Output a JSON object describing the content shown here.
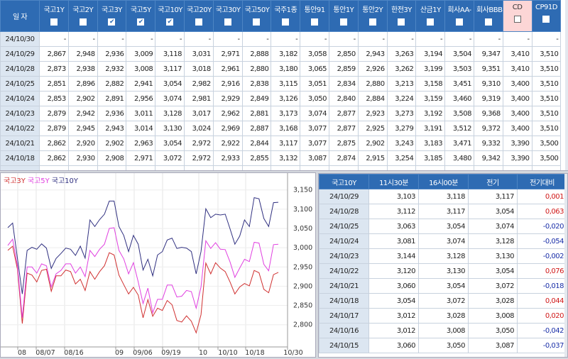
{
  "rates": {
    "date_header": "일 자",
    "columns": [
      {
        "label": "국고1Y",
        "checked": false
      },
      {
        "label": "국고2Y",
        "checked": false
      },
      {
        "label": "국고3Y",
        "checked": true
      },
      {
        "label": "국고5Y",
        "checked": true
      },
      {
        "label": "국고10Y",
        "checked": true
      },
      {
        "label": "국고20Y",
        "checked": false
      },
      {
        "label": "국고30Y",
        "checked": false
      },
      {
        "label": "국고50Y",
        "checked": false
      },
      {
        "label": "국주1종",
        "checked": false
      },
      {
        "label": "통안91",
        "checked": false
      },
      {
        "label": "통안1Y",
        "checked": false
      },
      {
        "label": "통안2Y",
        "checked": false
      },
      {
        "label": "한전3Y",
        "checked": false
      },
      {
        "label": "산금1Y",
        "checked": false
      },
      {
        "label": "회사AA-",
        "checked": false
      },
      {
        "label": "회사BBB-",
        "checked": false
      },
      {
        "label": "CD",
        "checked": false
      },
      {
        "label": "CP91D",
        "checked": false
      }
    ],
    "rows": [
      {
        "date": "24/10/30",
        "values": [
          "-",
          "-",
          "-",
          "-",
          "-",
          "-",
          "-",
          "-",
          "-",
          "-",
          "-",
          "-",
          "-",
          "-",
          "-",
          "-",
          "-",
          "-"
        ]
      },
      {
        "date": "24/10/29",
        "values": [
          "2,867",
          "2,948",
          "2,936",
          "3,009",
          "3,118",
          "3,031",
          "2,971",
          "2,888",
          "3,182",
          "3,058",
          "2,850",
          "2,943",
          "3,263",
          "3,194",
          "3,504",
          "9,347",
          "3,410",
          "3,510"
        ]
      },
      {
        "date": "24/10/28",
        "values": [
          "2,873",
          "2,938",
          "2,932",
          "3,008",
          "3,117",
          "3,018",
          "2,961",
          "2,880",
          "3,180",
          "3,065",
          "2,859",
          "2,926",
          "3,262",
          "3,199",
          "3,503",
          "9,351",
          "3,410",
          "3,510"
        ]
      },
      {
        "date": "24/10/25",
        "values": [
          "2,851",
          "2,896",
          "2,882",
          "2,941",
          "3,054",
          "2,982",
          "2,916",
          "2,838",
          "3,115",
          "3,051",
          "2,834",
          "2,880",
          "3,213",
          "3,158",
          "3,451",
          "9,310",
          "3,400",
          "3,510"
        ]
      },
      {
        "date": "24/10/24",
        "values": [
          "2,853",
          "2,902",
          "2,891",
          "2,956",
          "3,074",
          "2,981",
          "2,929",
          "2,849",
          "3,126",
          "3,050",
          "2,840",
          "2,884",
          "3,224",
          "3,159",
          "3,460",
          "9,319",
          "3,400",
          "3,510"
        ]
      },
      {
        "date": "24/10/23",
        "values": [
          "2,879",
          "2,942",
          "2,936",
          "3,011",
          "3,128",
          "3,017",
          "2,962",
          "2,881",
          "3,173",
          "3,074",
          "2,877",
          "2,923",
          "3,273",
          "3,192",
          "3,508",
          "9,368",
          "3,400",
          "3,510"
        ]
      },
      {
        "date": "24/10/22",
        "values": [
          "2,879",
          "2,945",
          "2,943",
          "3,014",
          "3,130",
          "3,024",
          "2,969",
          "2,887",
          "3,168",
          "3,077",
          "2,877",
          "2,925",
          "3,279",
          "3,191",
          "3,512",
          "9,372",
          "3,400",
          "3,510"
        ]
      },
      {
        "date": "24/10/21",
        "values": [
          "2,862",
          "2,920",
          "2,902",
          "2,963",
          "3,054",
          "2,972",
          "2,922",
          "2,844",
          "3,117",
          "3,077",
          "2,875",
          "2,902",
          "3,243",
          "3,183",
          "3,471",
          "9,332",
          "3,390",
          "3,500"
        ]
      },
      {
        "date": "24/10/18",
        "values": [
          "2,862",
          "2,930",
          "2,908",
          "2,971",
          "3,072",
          "2,972",
          "2,933",
          "2,855",
          "3,132",
          "3,087",
          "2,874",
          "2,915",
          "3,254",
          "3,185",
          "3,480",
          "9,342",
          "3,390",
          "3,500"
        ]
      }
    ]
  },
  "chart_data": {
    "type": "line",
    "legend": [
      "국고3Y",
      "국고5Y",
      "국고10Y"
    ],
    "colors": [
      "#d03030",
      "#e040e0",
      "#303080"
    ],
    "ylim": [
      2750,
      3190
    ],
    "yticks": [
      "3,150",
      "3,100",
      "3,050",
      "3,000",
      "2,950",
      "2,900",
      "2,850",
      "2,800"
    ],
    "ytick_values": [
      3150,
      3100,
      3050,
      3000,
      2950,
      2900,
      2850,
      2800
    ],
    "xticks": [
      "08",
      "08/07",
      "08/16",
      "09",
      "09/06",
      "09/19",
      "10",
      "10/10",
      "10/18",
      "10/30"
    ],
    "series": [
      {
        "name": "국고3Y",
        "values": [
          2993,
          3004,
          2944,
          2803,
          2934,
          2929,
          2911,
          2941,
          2944,
          2887,
          2927,
          2927,
          2942,
          2938,
          2906,
          2918,
          2889,
          2938,
          2918,
          2938,
          2953,
          2987,
          2981,
          2929,
          2904,
          2880,
          2897,
          2877,
          2818,
          2865,
          2822,
          2843,
          2837,
          2863,
          2852,
          2811,
          2807,
          2823,
          2809,
          2779,
          2826,
          2960,
          2932,
          2961,
          2947,
          2938,
          2911,
          2880,
          2898,
          2907,
          2901,
          2941,
          2935,
          2892,
          2883,
          2930,
          2936
        ]
      },
      {
        "name": "국고5Y",
        "values": [
          3006,
          3022,
          2953,
          2818,
          2950,
          2950,
          2934,
          2958,
          2953,
          2898,
          2932,
          2941,
          2958,
          2958,
          2934,
          2950,
          2925,
          2993,
          2977,
          2996,
          3009,
          3050,
          3052,
          2993,
          2971,
          2932,
          2961,
          2911,
          2855,
          2895,
          2831,
          2866,
          2866,
          2903,
          2903,
          2872,
          2874,
          2889,
          2886,
          2843,
          2898,
          3018,
          2998,
          3013,
          2996,
          2995,
          2963,
          2923,
          2947,
          2970,
          2964,
          3014,
          3012,
          2957,
          2940,
          3008,
          3009
        ]
      },
      {
        "name": "국고10Y",
        "values": [
          3052,
          3064,
          2972,
          2880,
          2993,
          3001,
          2996,
          3010,
          2999,
          2946,
          2972,
          2985,
          2999,
          2996,
          2980,
          3004,
          2973,
          3072,
          3055,
          3073,
          3087,
          3121,
          3121,
          3055,
          3032,
          2990,
          3032,
          3009,
          2942,
          2970,
          2927,
          2981,
          2990,
          3020,
          3025,
          2998,
          3001,
          2999,
          2990,
          2932,
          2990,
          3101,
          3078,
          3087,
          3085,
          3087,
          3049,
          3009,
          3030,
          3072,
          3055,
          3130,
          3127,
          3076,
          3055,
          3117,
          3118
        ]
      }
    ]
  },
  "detail": {
    "headers": [
      "국고10Y",
      "11시30분",
      "16시00분",
      "전기",
      "전기대비"
    ],
    "rows": [
      {
        "date": "24/10/29",
        "v": [
          "3,103",
          "3,118",
          "3,117",
          "0,001"
        ],
        "sign": "pos"
      },
      {
        "date": "24/10/28",
        "v": [
          "3,112",
          "3,117",
          "3,054",
          "0,063"
        ],
        "sign": "pos"
      },
      {
        "date": "24/10/25",
        "v": [
          "3,063",
          "3,054",
          "3,074",
          "-0,020"
        ],
        "sign": "neg"
      },
      {
        "date": "24/10/24",
        "v": [
          "3,081",
          "3,074",
          "3,128",
          "-0,054"
        ],
        "sign": "neg"
      },
      {
        "date": "24/10/23",
        "v": [
          "3,144",
          "3,128",
          "3,130",
          "-0,002"
        ],
        "sign": "neg"
      },
      {
        "date": "24/10/22",
        "v": [
          "3,120",
          "3,130",
          "3,054",
          "0,076"
        ],
        "sign": "pos"
      },
      {
        "date": "24/10/21",
        "v": [
          "3,060",
          "3,054",
          "3,072",
          "-0,018"
        ],
        "sign": "neg"
      },
      {
        "date": "24/10/18",
        "v": [
          "3,054",
          "3,072",
          "3,028",
          "0,044"
        ],
        "sign": "pos"
      },
      {
        "date": "24/10/17",
        "v": [
          "3,012",
          "3,028",
          "3,008",
          "0,020"
        ],
        "sign": "pos"
      },
      {
        "date": "24/10/16",
        "v": [
          "3,012",
          "3,008",
          "3,050",
          "-0,042"
        ],
        "sign": "neg"
      },
      {
        "date": "24/10/15",
        "v": [
          "3,060",
          "3,050",
          "3,087",
          "-0,037"
        ],
        "sign": "neg"
      }
    ]
  }
}
